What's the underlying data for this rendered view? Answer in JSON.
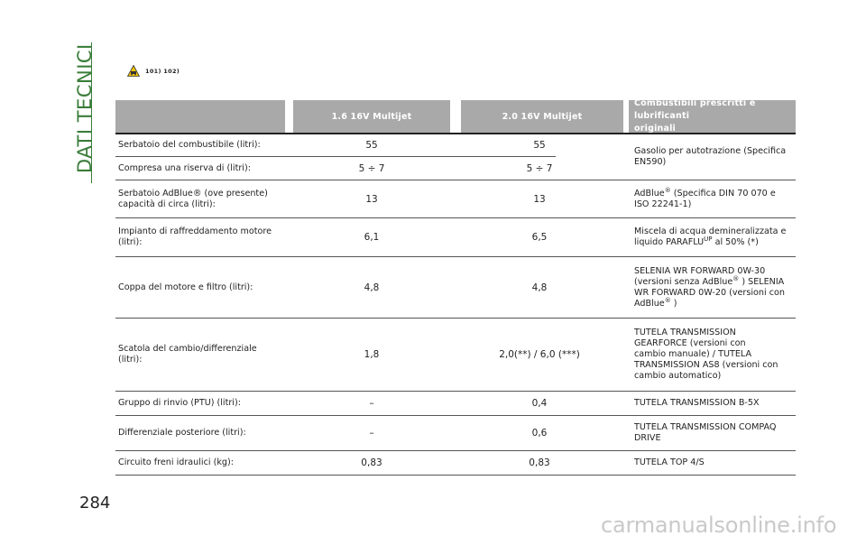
{
  "section_title": "DATI TECNICI",
  "page_number": "284",
  "warning": {
    "icon": "warning-triangle-icon",
    "refs": "101)  102)"
  },
  "header": {
    "col1": "",
    "col2": "1.6 16V Multijet",
    "col3": "2.0 16V Multijet",
    "col4_line1": "Combustibili prescritti e lubrificanti",
    "col4_line2": "originali"
  },
  "rows": [
    {
      "label": "Serbatoio del combustibile (litri):",
      "v16": "55",
      "v20": "55"
    },
    {
      "label": "Compresa una riserva di (litri):",
      "v16": "5 ÷ 7",
      "v20": "5 ÷ 7"
    },
    {
      "label_line1": "Serbatoio AdBlue® (ove presente)",
      "label_line2": "capacità di circa (litri):",
      "v16": "13",
      "v20": "13"
    },
    {
      "label_line1": "Impianto di raffreddamento motore",
      "label_line2": "(litri):",
      "v16": "6,1",
      "v20": "6,5"
    },
    {
      "label": "Coppa del motore e filtro (litri):",
      "v16": "4,8",
      "v20": "4,8"
    },
    {
      "label_line1": "Scatola del cambio/differenziale",
      "label_line2": "(litri):",
      "v16": "1,8",
      "v20": "2,0(**) / 6,0 (***)"
    },
    {
      "label": "Gruppo di rinvio (PTU) (litri):",
      "v16": "–",
      "v20": "0,4"
    },
    {
      "label": "Differenziale posteriore (litri):",
      "v16": "–",
      "v20": "0,6"
    },
    {
      "label": "Circuito freni idraulici (kg):",
      "v16": "0,83",
      "v20": "0,83"
    }
  ],
  "fluids": {
    "diesel_line1": "Gasolio per autotrazione (Specifica",
    "diesel_line2": "EN590)",
    "adblue_a": "AdBlue",
    "adblue_reg": "®",
    "adblue_b": " (Specifica DIN 70 070 e",
    "adblue_line2": "ISO 22241-1)",
    "coolant_line1": "Miscela di acqua demineralizzata e",
    "coolant_a": "liquido PARAFLU",
    "coolant_up": "UP",
    "coolant_b": " al 50% (*)",
    "oil_line1": "SELENIA WR FORWARD 0W-30",
    "oil_a": "(versioni senza AdBlue",
    "oil_reg": "®",
    "oil_b": " ) SELENIA",
    "oil_line3": "WR FORWARD 0W-20 (versioni con",
    "oil_c": "AdBlue",
    "oil_reg2": "®",
    "oil_d": " )",
    "gear_line1": "TUTELA TRANSMISSION",
    "gear_line2": "GEARFORCE (versioni con",
    "gear_line3": "cambio manuale) / TUTELA",
    "gear_line4": "TRANSMISSION AS8 (versioni con",
    "gear_line5": "cambio automatico)",
    "ptu": "TUTELA TRANSMISSION B-5X",
    "rear_line1": "TUTELA TRANSMISSION COMPAQ",
    "rear_line2": "DRIVE",
    "brake": "TUTELA TOP 4/S"
  },
  "watermark": "carmanualsonline.info",
  "colors": {
    "accent": "#3a7d3a",
    "header_bg": "#a9a9a9",
    "warning_fill": "#f2c200"
  }
}
